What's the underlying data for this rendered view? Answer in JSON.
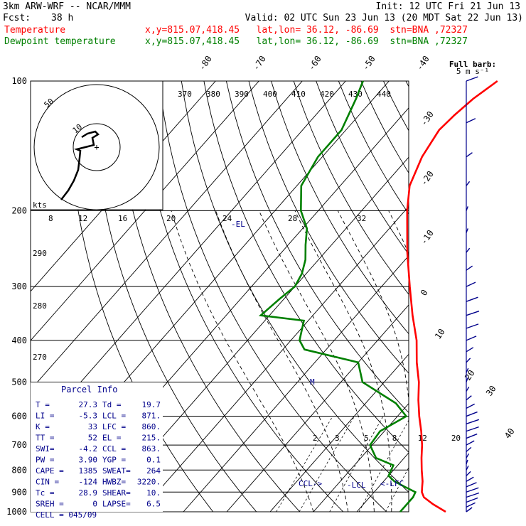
{
  "header": {
    "model": "3km ARW-WRF -- NCAR/MMM",
    "init": "Init: 12 UTC Fri 21 Jun 13",
    "fcst_label": "Fcst:",
    "fcst_value": "38 h",
    "valid": "Valid: 02 UTC Sun 23 Jun 13 (20 MDT Sat 22 Jun 13)",
    "temp_label": "Temperature",
    "temp_loc": "x,y=815.07,418.45   lat,lon= 36.12, -86.69  stn=BNA ,72327",
    "dew_label": "Dewpoint temperature",
    "dew_loc": "x,y=815.07,418.45   lat,lon= 36.12, -86.69  stn=BNA ,72327"
  },
  "colors": {
    "temperature": "#ff0000",
    "dewpoint": "#008000",
    "hodograph": "#000000",
    "parcel_text": "#00008b",
    "wind": "#00008b"
  },
  "barb_legend": {
    "line1": "Full barb:",
    "line2": "5 m s⁻¹"
  },
  "chart_data": {
    "type": "line",
    "chart_kind": "skew-t log-p",
    "pressure_axis": {
      "min": 100,
      "max": 1000,
      "scale": "log",
      "ticks": [
        100,
        200,
        300,
        400,
        500,
        600,
        700,
        800,
        900,
        1000
      ]
    },
    "isotherm_labels": [
      "-80",
      "-70",
      "-60",
      "-50",
      "-40",
      "-30",
      "-20",
      "-10",
      "0",
      "10",
      "20",
      "30",
      "40"
    ],
    "theta_labels": [
      "270",
      "280",
      "290"
    ],
    "theta_e_labels": [
      "370",
      "380",
      "390",
      "400",
      "410",
      "420",
      "430",
      "440"
    ],
    "mixing_ratio_labels": [
      "2",
      "3",
      "5",
      "8",
      "12",
      "20"
    ],
    "upper_mixing_labels": [
      "8",
      "12",
      "16",
      "20",
      "24",
      "28",
      "32"
    ],
    "hodograph_labels": {
      "kts": "kts",
      "inner": "10",
      "outer": "50"
    },
    "series": [
      {
        "name": "Temperature",
        "points": [
          [
            1000,
            30.5
          ],
          [
            960,
            26
          ],
          [
            925,
            22.5
          ],
          [
            900,
            21
          ],
          [
            875,
            20
          ],
          [
            850,
            19
          ],
          [
            800,
            16.5
          ],
          [
            750,
            14
          ],
          [
            700,
            11.5
          ],
          [
            650,
            8.5
          ],
          [
            600,
            5
          ],
          [
            550,
            1.5
          ],
          [
            500,
            -2
          ],
          [
            450,
            -6.5
          ],
          [
            400,
            -11
          ],
          [
            350,
            -17
          ],
          [
            300,
            -23.5
          ],
          [
            250,
            -31
          ],
          [
            200,
            -39.5
          ],
          [
            175,
            -44
          ],
          [
            150,
            -47
          ],
          [
            130,
            -48.5
          ],
          [
            120,
            -48
          ],
          [
            110,
            -47
          ],
          [
            100,
            -45
          ]
        ]
      },
      {
        "name": "Dewpoint temperature",
        "points": [
          [
            1000,
            20
          ],
          [
            960,
            20
          ],
          [
            925,
            20
          ],
          [
            900,
            19.5
          ],
          [
            875,
            16
          ],
          [
            850,
            12.5
          ],
          [
            825,
            10
          ],
          [
            780,
            9
          ],
          [
            750,
            3.5
          ],
          [
            700,
            -0.5
          ],
          [
            650,
            -1
          ],
          [
            600,
            2
          ],
          [
            560,
            -3
          ],
          [
            500,
            -15
          ],
          [
            450,
            -20
          ],
          [
            420,
            -35
          ],
          [
            400,
            -38
          ],
          [
            360,
            -41
          ],
          [
            350,
            -52
          ],
          [
            320,
            -51
          ],
          [
            300,
            -50
          ],
          [
            280,
            -51
          ],
          [
            260,
            -53
          ],
          [
            240,
            -56
          ],
          [
            220,
            -59
          ],
          [
            200,
            -64
          ],
          [
            175,
            -69
          ],
          [
            150,
            -71
          ],
          [
            130,
            -71
          ],
          [
            110,
            -74
          ],
          [
            100,
            -76
          ]
        ]
      }
    ],
    "annotations": {
      "el": "-EL",
      "ccl": "CCL->",
      "lcl": "-LCL",
      "lfc": "<-LFC",
      "m": "M"
    }
  },
  "parcel_info": {
    "title": "Parcel Info",
    "rows": [
      [
        "T  =",
        "27.3",
        "Td =",
        "19.7"
      ],
      [
        "LI =",
        "-5.3",
        "LCL =",
        "871."
      ],
      [
        "K  =",
        "33",
        "LFC =",
        "860."
      ],
      [
        "TT =",
        "52",
        "EL  =",
        "215."
      ],
      [
        "SWI=",
        "-4.2",
        "CCL =",
        "863."
      ],
      [
        "PW =",
        "3.90",
        "YGP =",
        "0.1"
      ],
      [
        "CAPE =",
        "1385",
        "SWEAT=",
        "264"
      ],
      [
        "CIN =",
        "-124",
        "HWBZ=",
        "3220."
      ],
      [
        "Tc =",
        "28.9",
        "SHEAR=",
        "10."
      ],
      [
        "SREH =",
        "0",
        "LAPSE=",
        "6.5"
      ]
    ],
    "cell": "CELL = 045/09"
  }
}
